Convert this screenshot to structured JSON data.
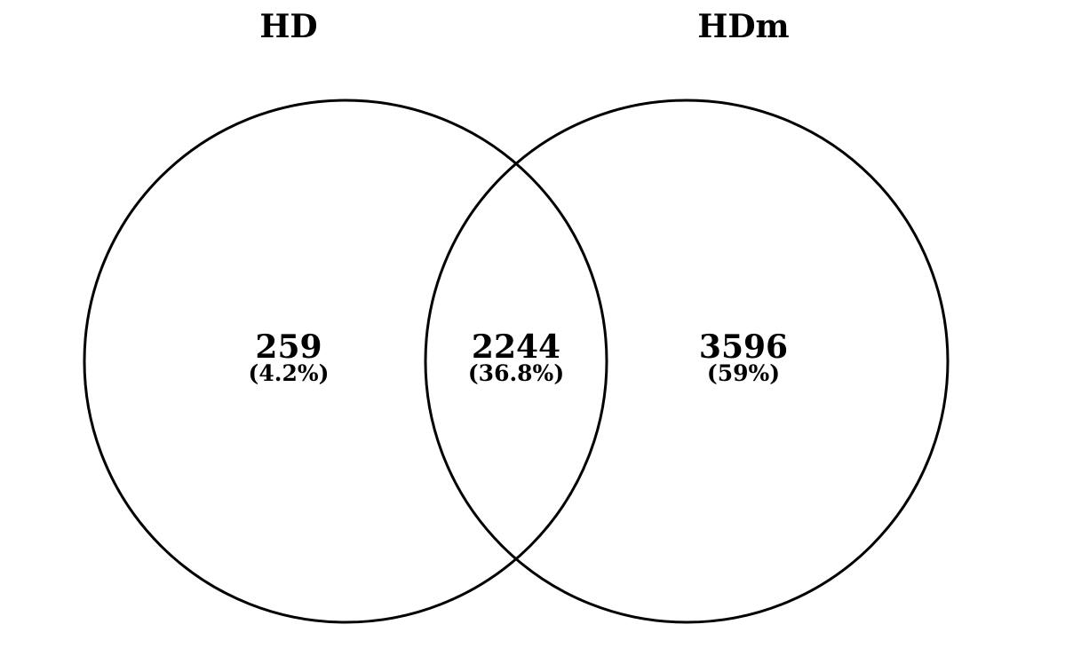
{
  "sets": [
    {
      "name": "HD"
    },
    {
      "name": "HDm"
    }
  ],
  "regions": {
    "hd_only": {
      "count": "259",
      "percent": "(4.2%)"
    },
    "overlap": {
      "count": "2244",
      "percent": "(36.8%)"
    },
    "hdm_only": {
      "count": "3596",
      "percent": "(59%)"
    }
  },
  "colors": {
    "stroke": "#000000",
    "text": "#000000",
    "background": "#ffffff"
  }
}
